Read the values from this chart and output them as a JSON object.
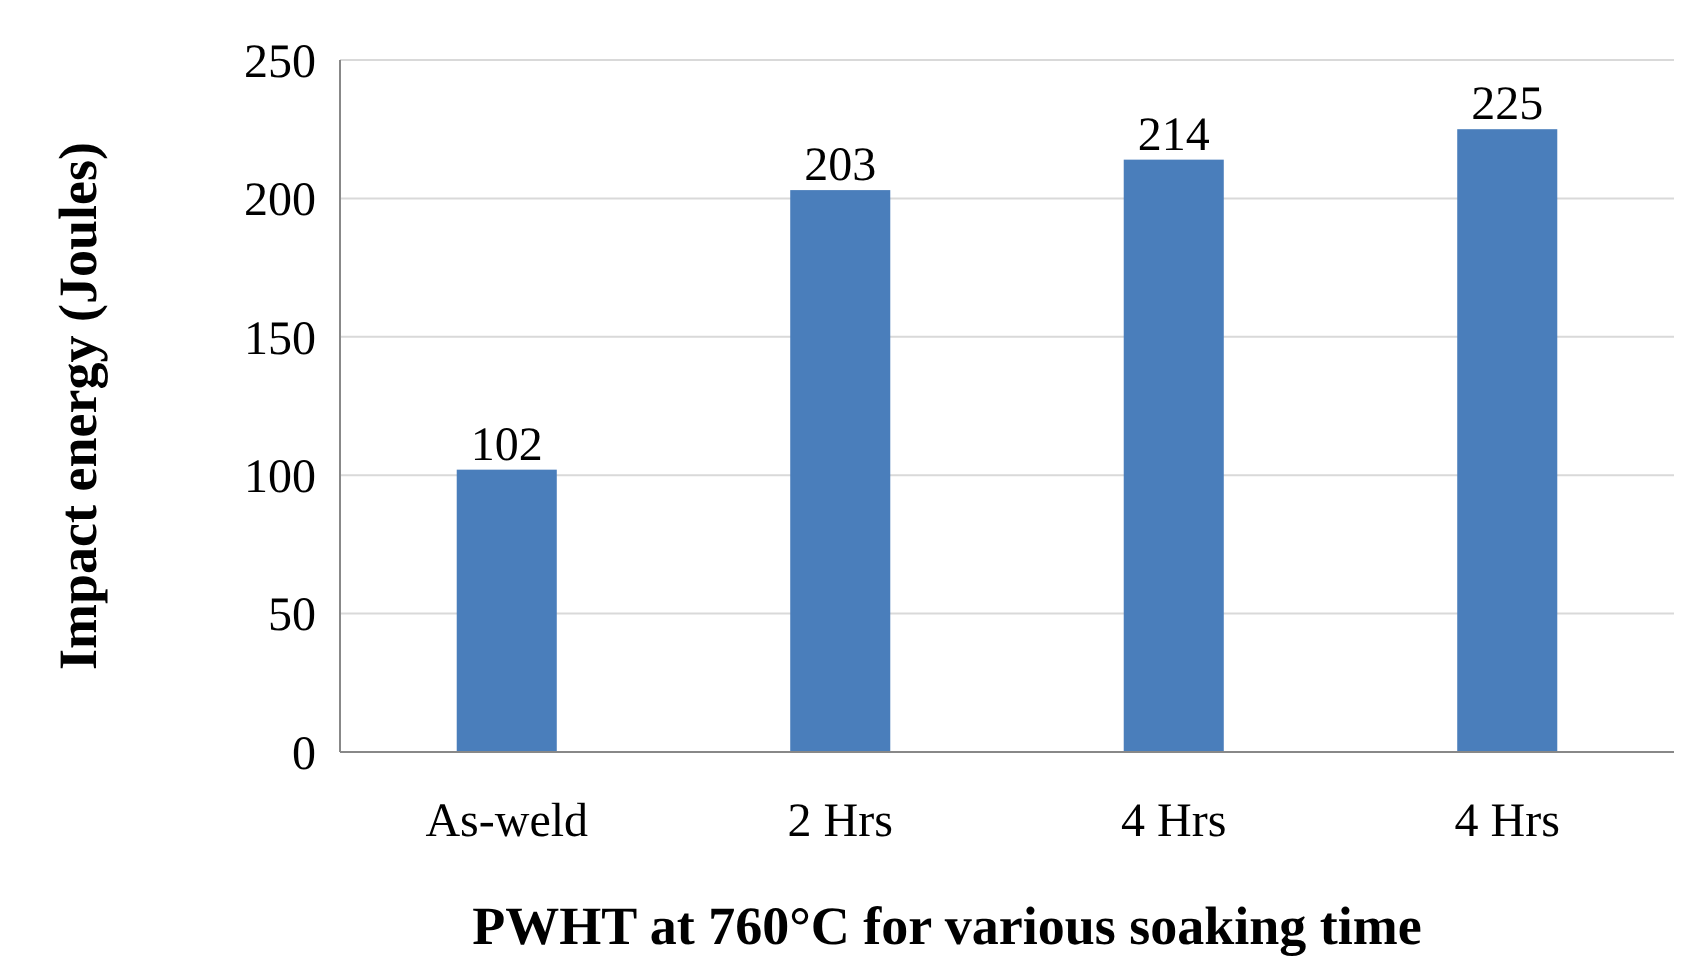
{
  "chart_data": {
    "type": "bar",
    "xlabel": "PWHT at 760°C for various soaking time",
    "ylabel": "Impact energy (Joules)",
    "categories": [
      "As-weld",
      "2 Hrs",
      "4 Hrs",
      "4 Hrs"
    ],
    "values": [
      102,
      203,
      214,
      225
    ],
    "color": "#4a7ebb",
    "ylim": [
      0,
      250
    ],
    "yticks": [
      0,
      50,
      100,
      150,
      200,
      250
    ],
    "grid": "y",
    "data_labels": true
  }
}
